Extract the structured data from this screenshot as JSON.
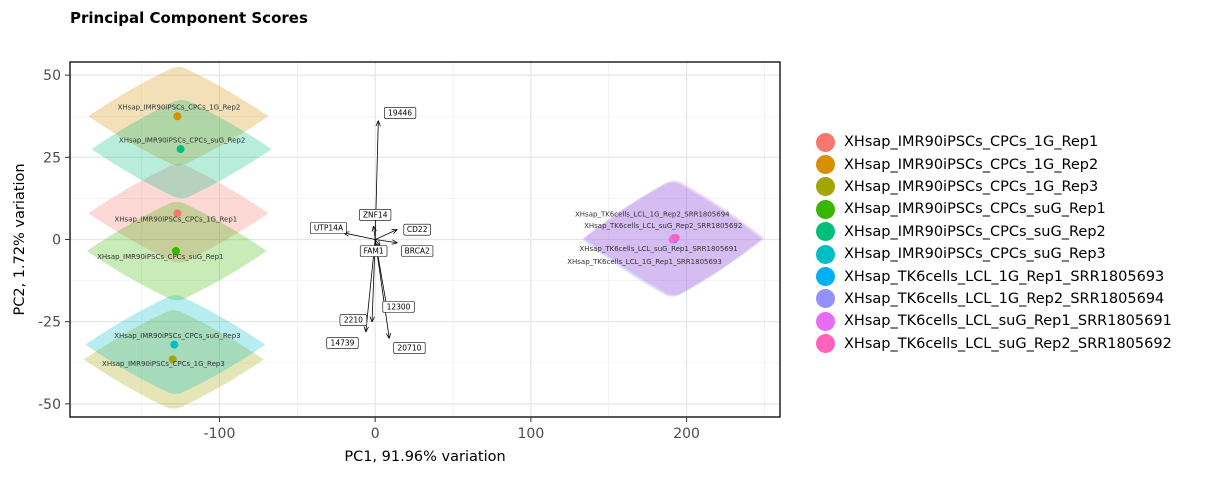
{
  "chart_data": {
    "type": "scatter",
    "title": "Principal Component Scores",
    "xlabel": "PC1, 91.96% variation",
    "ylabel": "PC2, 1.72% variation",
    "xlim": [
      -196,
      260
    ],
    "ylim": [
      -54,
      54
    ],
    "x_ticks": [
      -100,
      0,
      100,
      200
    ],
    "x_tick_labels": [
      "-100",
      "0",
      "100",
      "200"
    ],
    "y_ticks": [
      -50,
      -25,
      0,
      25,
      50
    ],
    "y_tick_labels": [
      "-50",
      "-25",
      "0",
      "25",
      "50"
    ],
    "grid": true,
    "legend_position": "right",
    "series": [
      {
        "name": "XHsap_IMR90iPSCs_CPCs_1G_Rep1",
        "color": "#F8766D",
        "x": -127,
        "y": 8,
        "label": "XHsap_IMR90iPSCs_CPCs_1G_Rep1",
        "label_at": [
          -128,
          5.5
        ]
      },
      {
        "name": "XHsap_IMR90iPSCs_CPCs_1G_Rep2",
        "color": "#D89000",
        "x": -127,
        "y": 37.5,
        "label": "XHsap_IMR90iPSCs_CPCs_1G_Rep2",
        "label_at": [
          -126,
          39.5
        ]
      },
      {
        "name": "XHsap_IMR90iPSCs_CPCs_1G_Rep3",
        "color": "#A3A500",
        "x": -130,
        "y": -36.5,
        "label": "XHsap_IMR90iPSCs_CPCs_1G_Rep3",
        "label_at": [
          -136,
          -38.5
        ]
      },
      {
        "name": "XHsap_IMR90iPSCs_CPCs_suG_Rep1",
        "color": "#39B600",
        "x": -128,
        "y": -3.5,
        "label": "XHsap_IMR90iPSCs_CPCs_suG_Rep1",
        "label_at": [
          -138,
          -6
        ]
      },
      {
        "name": "XHsap_IMR90iPSCs_CPCs_suG_Rep2",
        "color": "#00BF7D",
        "x": -125,
        "y": 27.5,
        "label": "XHsap_IMR90iPSCs_CPCs_suG_Rep2",
        "label_at": [
          -124,
          29.5
        ]
      },
      {
        "name": "XHsap_IMR90iPSCs_CPCs_suG_Rep3",
        "color": "#00BFC4",
        "x": -129,
        "y": -32,
        "label": "XHsap_IMR90iPSCs_CPCs_suG_Rep3",
        "label_at": [
          -127,
          -30
        ]
      },
      {
        "name": "XHsap_TK6cells_LCL_1G_Rep1_SRR1805693",
        "color": "#00B0F6",
        "x": 192,
        "y": 0,
        "label": "XHsap_TK6cells_LCL_1G_Rep1_SRR1805693",
        "label_at": [
          173,
          -7.5
        ]
      },
      {
        "name": "XHsap_TK6cells_LCL_1G_Rep2_SRR1805694",
        "color": "#9590FF",
        "x": 192,
        "y": 0.5,
        "label": "XHsap_TK6cells_LCL_1G_Rep2_SRR1805694",
        "label_at": [
          178,
          7
        ]
      },
      {
        "name": "XHsap_TK6cells_LCL_suG_Rep1_SRR1805691",
        "color": "#E76BF3",
        "x": 191,
        "y": 0,
        "label": "XHsap_TK6cells_LCL_suG_Rep1_SRR1805691",
        "label_at": [
          182,
          -3.5
        ]
      },
      {
        "name": "XHsap_TK6cells_LCL_suG_Rep2_SRR1805692",
        "color": "#FF62BC",
        "x": 193,
        "y": 0.5,
        "label": "XHsap_TK6cells_LCL_suG_Rep2_SRR1805692",
        "label_at": [
          185,
          3.5
        ]
      }
    ],
    "loadings": [
      {
        "label": "19446",
        "x": 2,
        "y": 36,
        "label_at": [
          16,
          38.5
        ]
      },
      {
        "label": "ZNF14",
        "x": -1,
        "y": 4,
        "label_at": [
          0,
          7.5
        ]
      },
      {
        "label": "UTP14A",
        "x": -20,
        "y": 2,
        "label_at": [
          -30,
          3.5
        ]
      },
      {
        "label": "CD22",
        "x": 14,
        "y": 3,
        "label_at": [
          27,
          3
        ]
      },
      {
        "label": "FAM1",
        "x": 3,
        "y": -2,
        "label_at": [
          -1,
          -3.5
        ]
      },
      {
        "label": "BRCA2",
        "x": 14,
        "y": -1,
        "label_at": [
          27,
          -3.5
        ]
      },
      {
        "label": "12300",
        "x": 8,
        "y": -22,
        "label_at": [
          15,
          -20.5
        ]
      },
      {
        "label": "2210",
        "x": -2,
        "y": -25,
        "label_at": [
          -14,
          -24.5
        ]
      },
      {
        "label": "14739",
        "x": -6,
        "y": -28,
        "label_at": [
          -21,
          -31.5
        ]
      },
      {
        "label": "20710",
        "x": 9,
        "y": -30,
        "label_at": [
          22,
          -33
        ]
      }
    ]
  }
}
